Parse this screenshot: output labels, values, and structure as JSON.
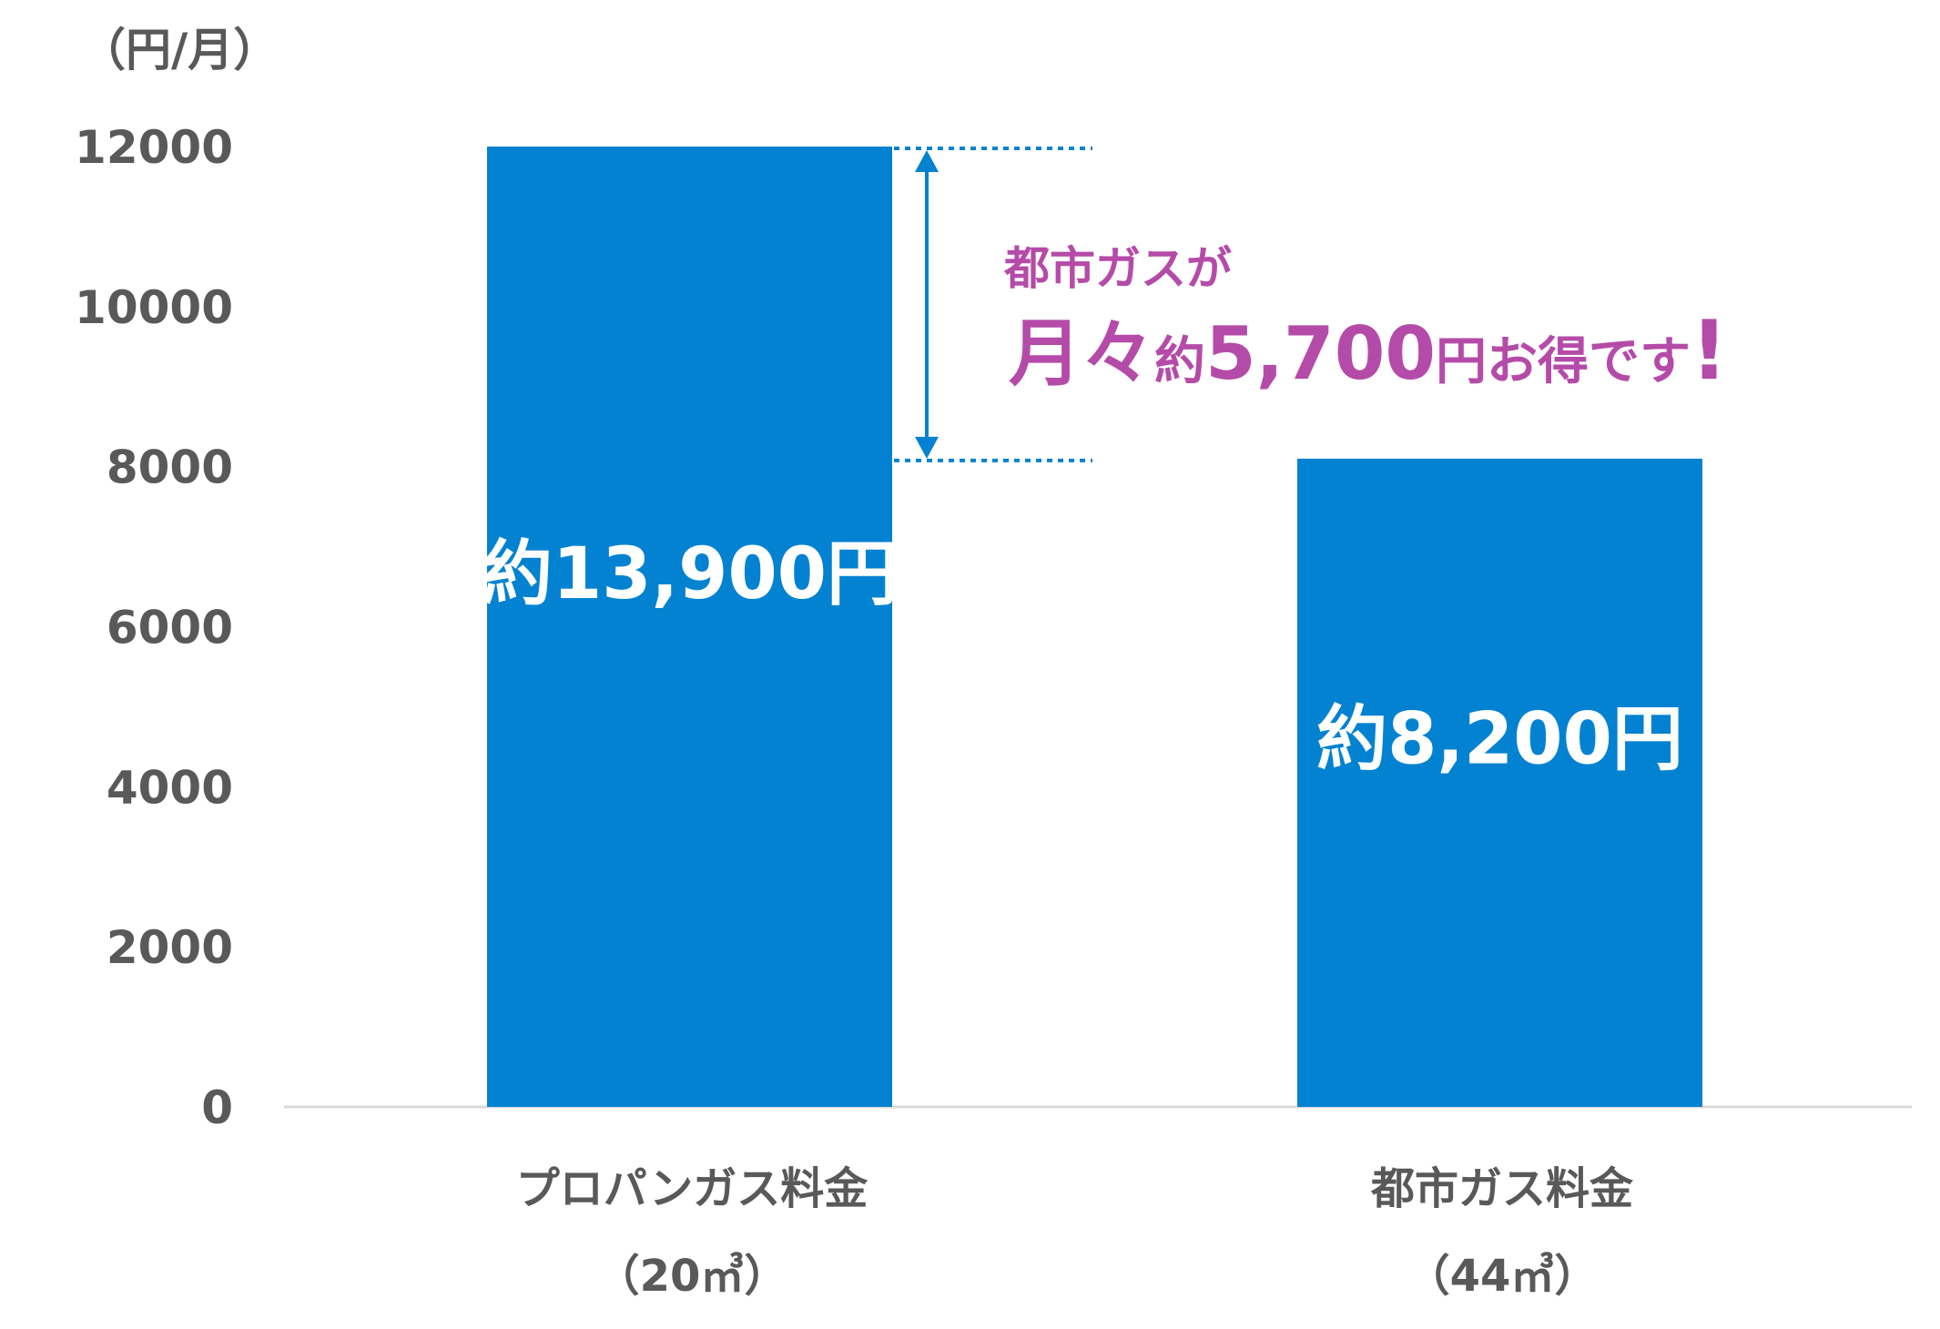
{
  "chart_data": {
    "type": "bar",
    "unit_label": "（円/月）",
    "categories": [
      "プロパンガス料金",
      "都市ガス料金"
    ],
    "category_sublabels": [
      "（20㎥）",
      "（44㎥）"
    ],
    "values": [
      12000,
      8100
    ],
    "data_labels": [
      "約13,900円",
      "約8,200円"
    ],
    "yticks": [
      "0",
      "2000",
      "4000",
      "6000",
      "8000",
      "10000",
      "12000"
    ],
    "ylim": [
      0,
      12000
    ],
    "grid": false,
    "bar_color": "#0382d1",
    "annotation": {
      "line1": "都市ガスが",
      "line2_a": "月々",
      "line2_b": "約",
      "line2_c": "5,700",
      "line2_d": "円お得です",
      "line2_e": "!",
      "color": "#b54ba8",
      "arrow_color": "#0382d1"
    }
  }
}
